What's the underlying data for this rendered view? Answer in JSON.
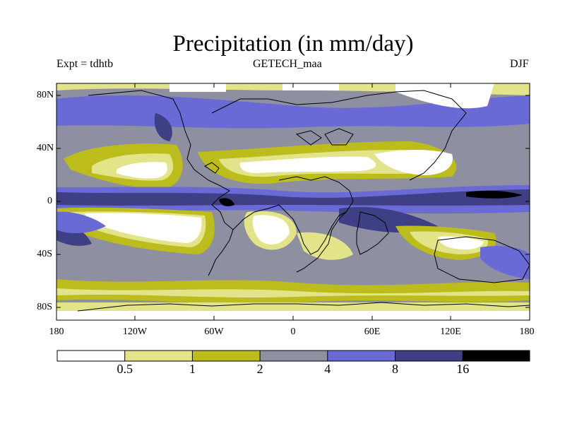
{
  "title": "Precipitation (in mm/day)",
  "experiment_label": "Expt = tdhtb",
  "dataset_label": "GETECH_maa",
  "season_label": "DJF",
  "y_axis_labels": [
    "80N",
    "40N",
    "0",
    "40S",
    "80S"
  ],
  "x_axis_labels": [
    "180",
    "120W",
    "60W",
    "0",
    "60E",
    "120E",
    "180"
  ],
  "colorbar": {
    "colors": [
      "#ffffff",
      "#e3e38a",
      "#bcbc1c",
      "#8f8fa2",
      "#6a6ad6",
      "#3f3f86",
      "#000000"
    ],
    "labels": [
      "0.5",
      "1",
      "2",
      "4",
      "8",
      "16"
    ]
  }
}
